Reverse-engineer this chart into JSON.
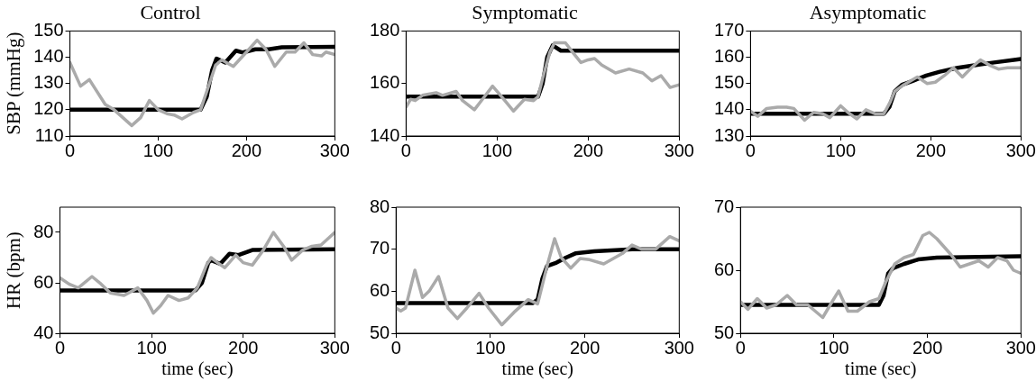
{
  "chart_data": [
    {
      "type": "line",
      "title": "Control",
      "ylabel": "SBP (mmHg)",
      "xlim": [
        0,
        300
      ],
      "xticks": [
        0,
        100,
        200,
        300
      ],
      "ylim": [
        110,
        150
      ],
      "yticks": [
        110,
        120,
        130,
        140,
        150
      ],
      "grid": false,
      "legend": false,
      "series": [
        {
          "color": "#aaaaaa",
          "x": [
            0,
            12,
            22,
            40,
            50,
            60,
            70,
            80,
            90,
            100,
            110,
            118,
            127,
            140,
            148,
            158,
            165,
            172,
            185,
            200,
            212,
            222,
            232,
            245,
            255,
            265,
            275,
            285,
            290,
            300
          ],
          "values": [
            138,
            129,
            131.5,
            122,
            120,
            117,
            114,
            117,
            123.5,
            120,
            118.5,
            118,
            116.5,
            119,
            120,
            130,
            137,
            139,
            136.5,
            142,
            146.5,
            143,
            136.5,
            142,
            142,
            145.5,
            141,
            140.5,
            142,
            141
          ]
        },
        {
          "color": "#000000",
          "x": [
            0,
            148,
            155,
            161,
            166,
            176,
            188,
            196,
            210,
            225,
            240,
            300
          ],
          "values": [
            120,
            120,
            125,
            135,
            139.5,
            138,
            142.5,
            141.8,
            143,
            143,
            143.8,
            144
          ]
        }
      ]
    },
    {
      "type": "line",
      "title": "Symptomatic",
      "xlim": [
        0,
        300
      ],
      "xticks": [
        0,
        100,
        200,
        300
      ],
      "ylim": [
        140,
        180
      ],
      "yticks": [
        140,
        160,
        180
      ],
      "grid": false,
      "legend": false,
      "series": [
        {
          "color": "#aaaaaa",
          "x": [
            0,
            5,
            10,
            18,
            33,
            40,
            55,
            62,
            75,
            85,
            95,
            105,
            118,
            130,
            140,
            145,
            150,
            158,
            163,
            175,
            185,
            192,
            200,
            207,
            215,
            230,
            245,
            260,
            270,
            280,
            290,
            300
          ],
          "values": [
            151,
            154,
            153.5,
            155.5,
            156.5,
            155.5,
            157,
            153.5,
            150,
            154.5,
            159,
            155,
            149.5,
            154,
            153.5,
            155,
            162,
            172,
            175.5,
            175.5,
            171,
            168,
            169,
            169.5,
            167,
            164,
            165.5,
            164,
            161,
            163,
            158.5,
            159.5
          ]
        },
        {
          "color": "#000000",
          "x": [
            0,
            145,
            150,
            155,
            161,
            170,
            180,
            200,
            300
          ],
          "values": [
            155,
            155,
            160,
            170,
            174.5,
            172.5,
            172.5,
            172.5,
            172.5
          ]
        }
      ]
    },
    {
      "type": "line",
      "title": "Asymptomatic",
      "xlim": [
        0,
        300
      ],
      "xticks": [
        0,
        100,
        200,
        300
      ],
      "ylim": [
        130,
        170
      ],
      "yticks": [
        130,
        140,
        150,
        160,
        170
      ],
      "grid": false,
      "legend": false,
      "series": [
        {
          "color": "#aaaaaa",
          "x": [
            0,
            8,
            18,
            30,
            40,
            48,
            60,
            70,
            80,
            88,
            100,
            108,
            118,
            128,
            138,
            148,
            155,
            160,
            170,
            185,
            196,
            205,
            215,
            225,
            235,
            245,
            255,
            265,
            275,
            285,
            300
          ],
          "values": [
            139.5,
            137.5,
            140.5,
            141,
            141,
            140.5,
            136,
            139,
            138.5,
            137,
            141.5,
            139,
            136.5,
            140,
            138.5,
            138.5,
            143,
            147,
            149.5,
            152.5,
            150,
            150.5,
            153,
            156,
            152.5,
            156,
            159,
            157,
            155.5,
            156,
            156
          ]
        },
        {
          "color": "#000000",
          "x": [
            0,
            148,
            154,
            160,
            168,
            180,
            195,
            210,
            230,
            250,
            270,
            300
          ],
          "values": [
            138.5,
            138.5,
            141,
            147,
            149.5,
            151,
            153,
            154.5,
            156,
            157,
            158,
            159.3
          ]
        }
      ]
    },
    {
      "type": "line",
      "ylabel": "HR (bpm)",
      "xlabel": "time (sec)",
      "xlim": [
        0,
        300
      ],
      "xticks": [
        0,
        100,
        200,
        300
      ],
      "ylim": [
        40,
        90
      ],
      "yticks": [
        40,
        60,
        80
      ],
      "grid": false,
      "legend": false,
      "series": [
        {
          "color": "#aaaaaa",
          "x": [
            0,
            10,
            20,
            35,
            45,
            55,
            70,
            85,
            95,
            102,
            110,
            118,
            130,
            140,
            150,
            160,
            165,
            172,
            180,
            192,
            200,
            210,
            222,
            233,
            245,
            253,
            265,
            275,
            285,
            300
          ],
          "values": [
            62,
            59.5,
            58,
            62.5,
            59.5,
            56,
            55,
            58,
            53,
            48,
            51,
            55,
            53,
            54,
            58,
            67,
            70,
            68,
            66,
            71,
            68,
            67,
            73,
            80,
            74,
            69,
            73,
            74.5,
            75,
            80
          ]
        },
        {
          "color": "#000000",
          "x": [
            0,
            148,
            155,
            162,
            165,
            175,
            185,
            195,
            210,
            300
          ],
          "values": [
            57,
            57,
            60,
            68,
            69,
            67.5,
            71.5,
            71,
            73,
            73.3
          ]
        }
      ]
    },
    {
      "type": "line",
      "xlabel": "time (sec)",
      "xlim": [
        0,
        300
      ],
      "xticks": [
        0,
        100,
        200,
        300
      ],
      "ylim": [
        50,
        80
      ],
      "yticks": [
        50,
        60,
        70,
        80
      ],
      "grid": false,
      "legend": false,
      "series": [
        {
          "color": "#aaaaaa",
          "x": [
            0,
            5,
            10,
            20,
            28,
            35,
            45,
            55,
            65,
            75,
            88,
            98,
            112,
            125,
            140,
            150,
            160,
            168,
            175,
            185,
            195,
            205,
            220,
            240,
            250,
            260,
            275,
            290,
            300
          ],
          "values": [
            56,
            55.3,
            56,
            65,
            58.5,
            60,
            63.5,
            56,
            53.5,
            56,
            59.5,
            56,
            52,
            55,
            58,
            57,
            66,
            72.5,
            68,
            65.5,
            67.8,
            67.5,
            66.5,
            69,
            71,
            70,
            70,
            73,
            72
          ]
        },
        {
          "color": "#000000",
          "x": [
            0,
            145,
            150,
            155,
            160,
            170,
            180,
            190,
            210,
            250,
            300
          ],
          "values": [
            57.2,
            57.2,
            58,
            63,
            66,
            66.8,
            68,
            69,
            69.5,
            70,
            70
          ]
        }
      ]
    },
    {
      "type": "line",
      "xlabel": "time (sec)",
      "xlim": [
        0,
        300
      ],
      "xticks": [
        0,
        100,
        200,
        300
      ],
      "ylim": [
        50,
        70
      ],
      "yticks": [
        50,
        60,
        70
      ],
      "grid": false,
      "legend": false,
      "series": [
        {
          "color": "#aaaaaa",
          "x": [
            0,
            8,
            18,
            28,
            38,
            50,
            60,
            72,
            88,
            98,
            105,
            115,
            125,
            138,
            148,
            155,
            165,
            175,
            185,
            195,
            202,
            210,
            225,
            235,
            245,
            255,
            265,
            275,
            285,
            292,
            300
          ],
          "values": [
            55,
            53.8,
            55.5,
            54,
            54.5,
            56,
            54.5,
            54.5,
            52.5,
            55,
            56.7,
            53.5,
            53.5,
            55,
            55.5,
            58,
            61,
            62,
            62.5,
            65.5,
            66,
            65,
            62.5,
            60.5,
            61,
            61.5,
            60.5,
            62,
            61.5,
            60,
            59.5
          ]
        },
        {
          "color": "#000000",
          "x": [
            0,
            148,
            153,
            158,
            163,
            175,
            190,
            210,
            300
          ],
          "values": [
            54.5,
            54.5,
            56,
            59.5,
            60.3,
            61,
            61.7,
            62,
            62.2
          ]
        }
      ]
    }
  ]
}
